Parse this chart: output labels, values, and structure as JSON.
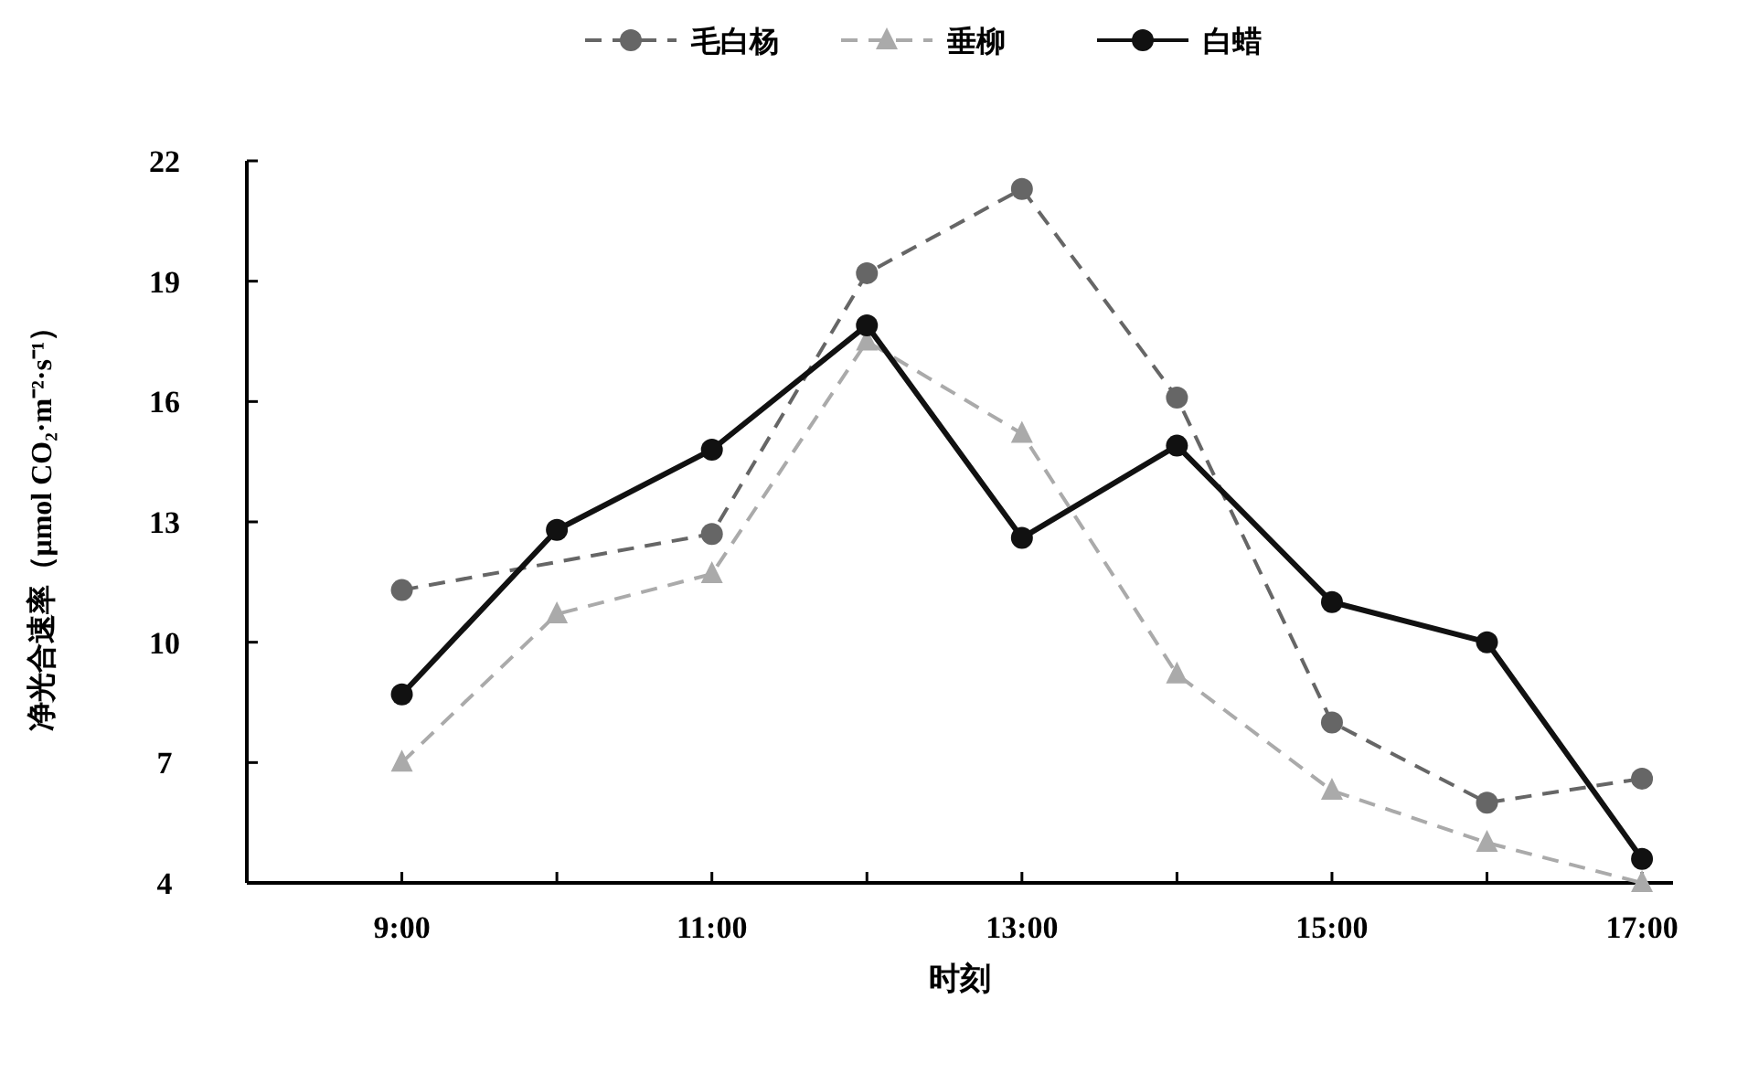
{
  "chart_data": {
    "type": "line",
    "xlabel": "时刻",
    "ylabel": "净光合速率（μmol CO₂·m⁻²·s⁻¹）",
    "x": [
      9,
      10,
      11,
      12,
      13,
      14,
      15,
      16,
      17
    ],
    "xlim": [
      8,
      17.2
    ],
    "xticks": [
      {
        "value": 9,
        "label": "9:00"
      },
      {
        "value": 10,
        "label": null
      },
      {
        "value": 11,
        "label": "11:00"
      },
      {
        "value": 12,
        "label": null
      },
      {
        "value": 13,
        "label": "13:00"
      },
      {
        "value": 14,
        "label": null
      },
      {
        "value": 15,
        "label": "15:00"
      },
      {
        "value": 16,
        "label": null
      },
      {
        "value": 17,
        "label": "17:00"
      }
    ],
    "ylim": [
      4,
      22
    ],
    "yticks": [
      4,
      7,
      10,
      13,
      16,
      19,
      22
    ],
    "grid": false,
    "legend": "top",
    "series": [
      {
        "name": "毛白杨",
        "color": "#666666",
        "marker": "circle",
        "line_style": "dashed",
        "values": [
          11.3,
          null,
          12.7,
          19.2,
          21.3,
          16.1,
          8.0,
          6.0,
          6.6
        ]
      },
      {
        "name": "垂柳",
        "color": "#aaaaaa",
        "marker": "triangle",
        "line_style": "dashed",
        "values": [
          7.0,
          10.7,
          11.7,
          17.5,
          15.2,
          9.2,
          6.3,
          5.0,
          4.0
        ]
      },
      {
        "name": "白蜡",
        "color": "#111111",
        "marker": "circle",
        "line_style": "solid",
        "values": [
          8.7,
          12.8,
          14.8,
          17.9,
          12.6,
          14.9,
          11.0,
          10.0,
          4.6
        ]
      }
    ]
  }
}
